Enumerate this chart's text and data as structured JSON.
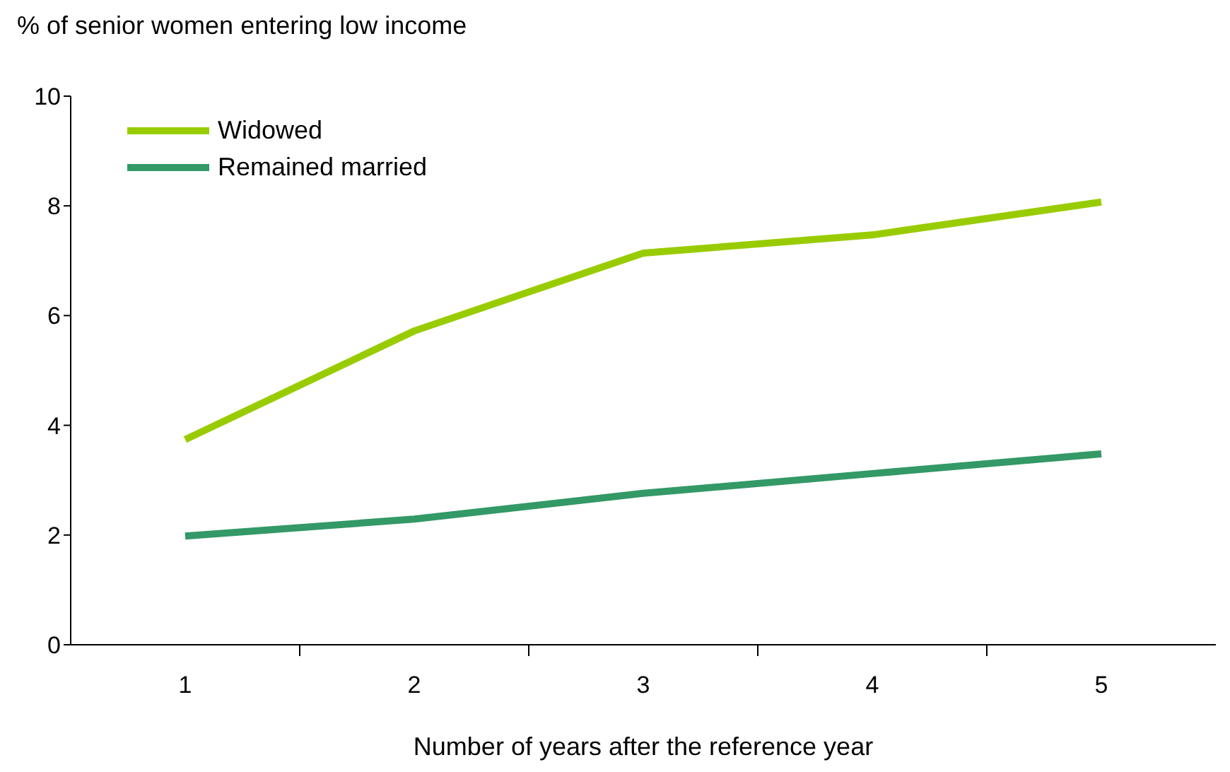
{
  "chart_data": {
    "type": "line",
    "ylabel": "% of senior women entering low income",
    "xlabel": "Number of years after the reference year",
    "categories": [
      "1",
      "2",
      "3",
      "4",
      "5"
    ],
    "series": [
      {
        "name": "Widowed",
        "color": "#99cc00",
        "values": [
          3.74,
          5.72,
          7.14,
          7.47,
          8.07
        ]
      },
      {
        "name": "Remained married",
        "color": "#339966",
        "values": [
          1.98,
          2.29,
          2.76,
          3.12,
          3.48
        ]
      }
    ],
    "ylim": [
      0,
      10
    ],
    "yticks": [
      0,
      2,
      4,
      6,
      8,
      10
    ],
    "grid": false,
    "legend": "top left",
    "marker": "none",
    "line_style": "solid"
  }
}
